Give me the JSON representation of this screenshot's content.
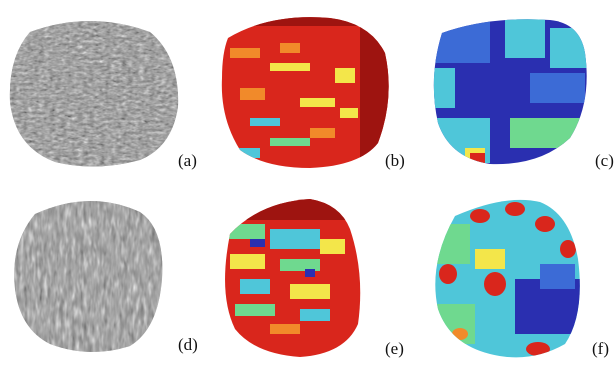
{
  "figure": {
    "panels": [
      {
        "id": "a",
        "label": "(a)",
        "kind": "grayscale"
      },
      {
        "id": "b",
        "label": "(b)",
        "kind": "hot-map"
      },
      {
        "id": "c",
        "label": "(c)",
        "kind": "cool-map"
      },
      {
        "id": "d",
        "label": "(d)",
        "kind": "grayscale"
      },
      {
        "id": "e",
        "label": "(e)",
        "kind": "hot-map"
      },
      {
        "id": "f",
        "label": "(f)",
        "kind": "cool-map"
      }
    ],
    "colors": {
      "background": "#ffffff",
      "jet_dark_blue": "#2a2fb0",
      "jet_blue": "#3c6bd6",
      "jet_cyan": "#4fc6d9",
      "jet_green": "#6fd98f",
      "jet_yellow": "#f3e64a",
      "jet_orange": "#f18a2a",
      "jet_red": "#d9261c",
      "jet_dark_red": "#9e1410",
      "gray_light": "#d8d8d8",
      "gray_dark": "#3a3a3a"
    }
  }
}
